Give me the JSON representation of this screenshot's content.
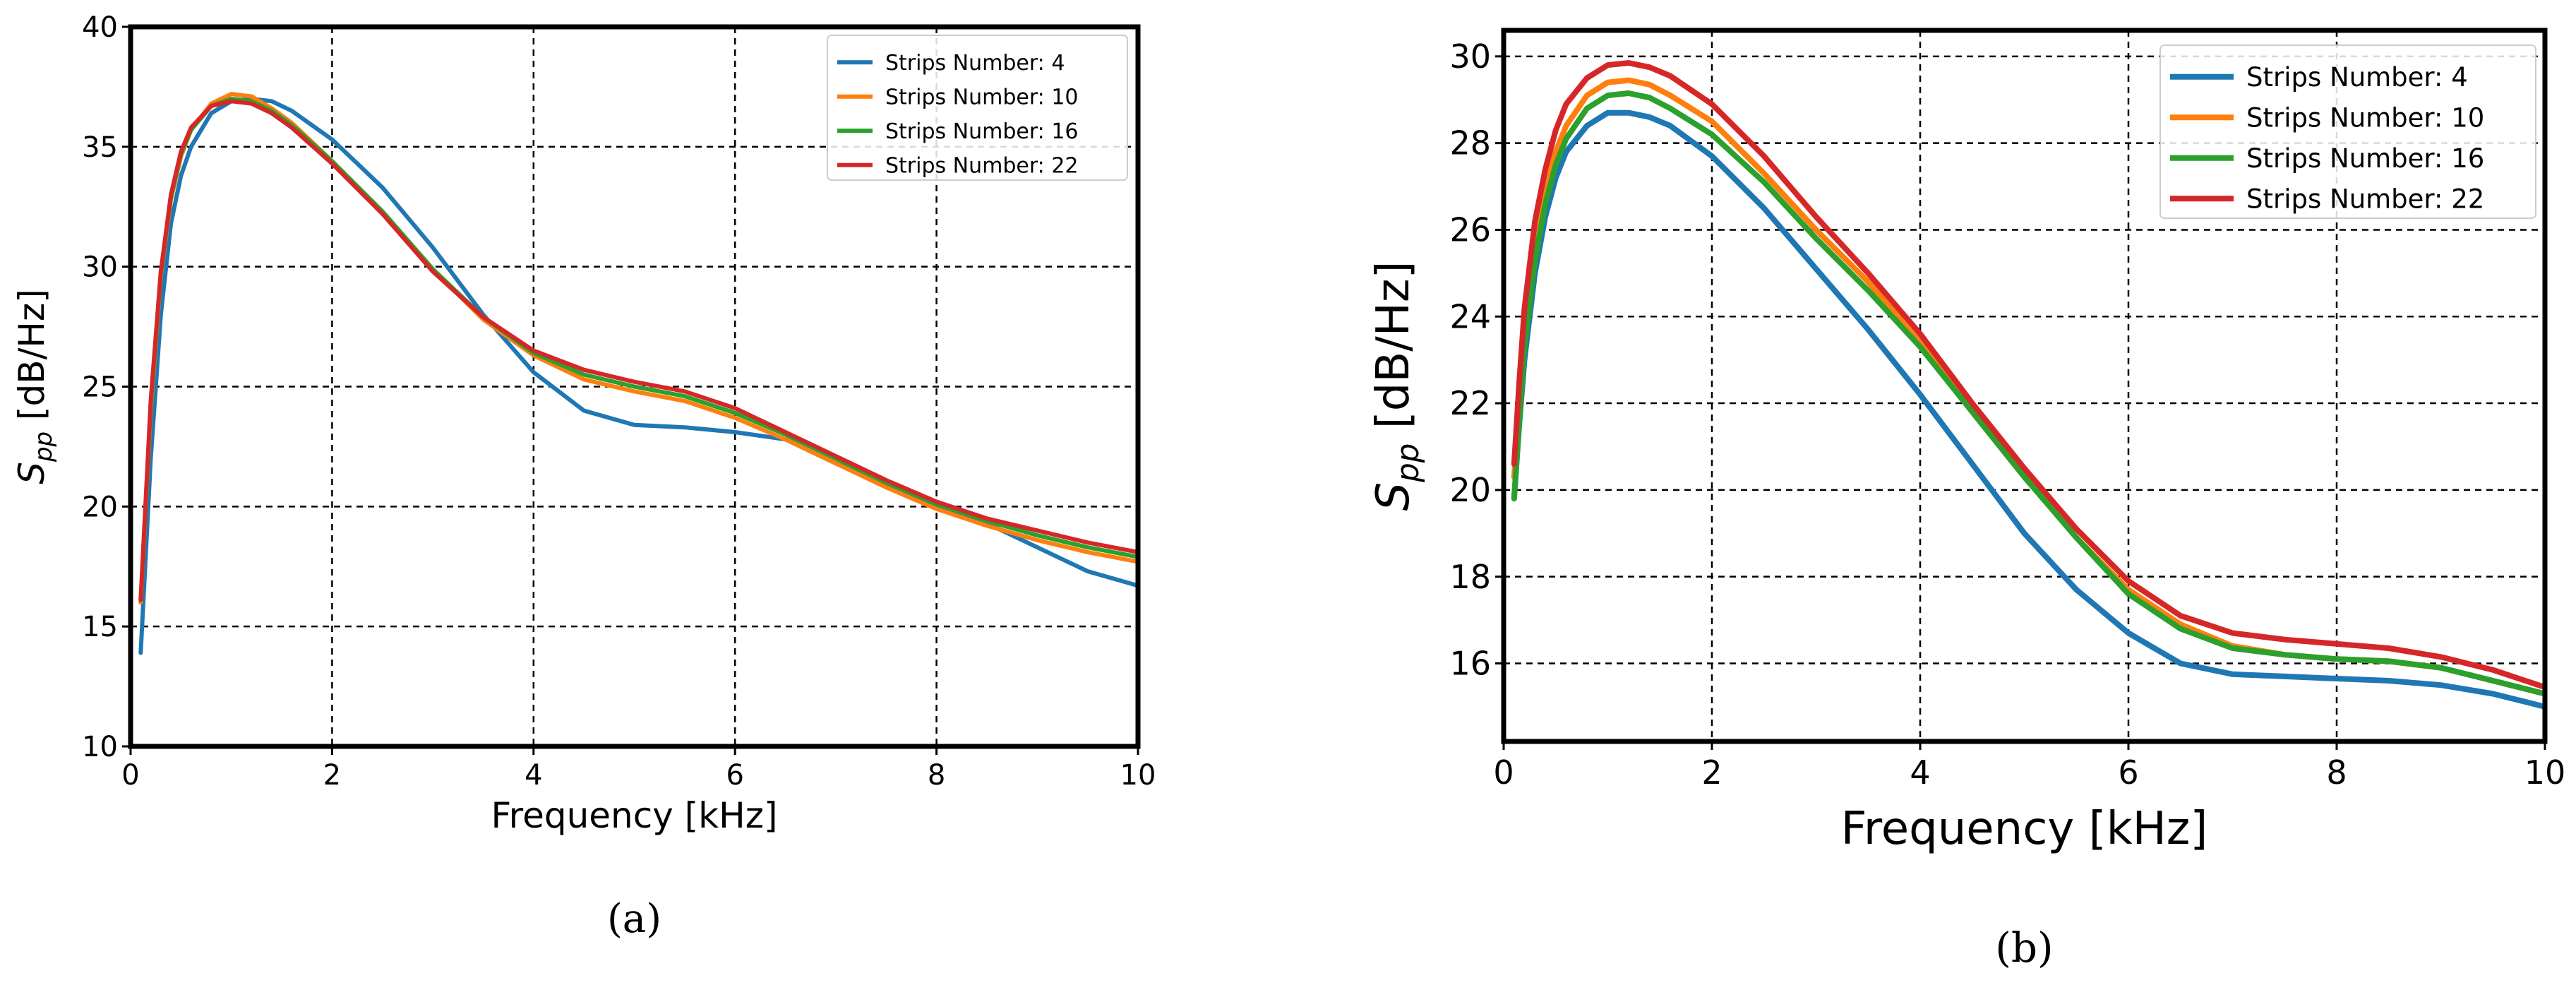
{
  "chart_data": [
    {
      "type": "line",
      "panel": "a",
      "caption": "(a)",
      "xlabel": "Frequency [kHz]",
      "ylabel_symbol": "S",
      "ylabel_subscript": "pp",
      "ylabel_unit": " [dB/Hz]",
      "xlim": [
        0,
        10
      ],
      "ylim": [
        10,
        40
      ],
      "xticks": [
        0,
        2,
        4,
        6,
        8,
        10
      ],
      "yticks": [
        10,
        15,
        20,
        25,
        30,
        35,
        40
      ],
      "grid": true,
      "legend_position": "top-right",
      "series": [
        {
          "name": "Strips Number: 4",
          "color": "#1f77b4",
          "x": [
            0.1,
            0.2,
            0.3,
            0.4,
            0.5,
            0.6,
            0.8,
            1.0,
            1.2,
            1.4,
            1.6,
            2.0,
            2.5,
            3.0,
            3.5,
            4.0,
            4.5,
            5.0,
            5.5,
            6.0,
            6.5,
            7.0,
            7.5,
            8.0,
            8.5,
            9.0,
            9.5,
            10.0
          ],
          "y": [
            13.9,
            22.0,
            28.0,
            31.8,
            33.8,
            35.0,
            36.4,
            36.9,
            37.0,
            36.9,
            36.5,
            35.3,
            33.3,
            30.8,
            28.0,
            25.6,
            24.0,
            23.4,
            23.3,
            23.1,
            22.8,
            21.8,
            20.9,
            20.0,
            19.3,
            18.3,
            17.3,
            16.7
          ]
        },
        {
          "name": "Strips Number: 10",
          "color": "#ff7f0e",
          "x": [
            0.1,
            0.2,
            0.3,
            0.4,
            0.5,
            0.6,
            0.8,
            1.0,
            1.2,
            1.4,
            1.6,
            2.0,
            2.5,
            3.0,
            3.5,
            4.0,
            4.5,
            5.0,
            5.5,
            6.0,
            6.5,
            7.0,
            7.5,
            8.0,
            8.5,
            9.0,
            9.5,
            10.0
          ],
          "y": [
            16.0,
            24.0,
            29.6,
            32.8,
            34.6,
            35.7,
            36.8,
            37.2,
            37.1,
            36.6,
            36.0,
            34.4,
            32.3,
            29.9,
            27.8,
            26.3,
            25.3,
            24.8,
            24.4,
            23.7,
            22.8,
            21.8,
            20.8,
            19.9,
            19.2,
            18.6,
            18.1,
            17.7
          ]
        },
        {
          "name": "Strips Number: 16",
          "color": "#2ca02c",
          "x": [
            0.1,
            0.2,
            0.3,
            0.4,
            0.5,
            0.6,
            0.8,
            1.0,
            1.2,
            1.4,
            1.6,
            2.0,
            2.5,
            3.0,
            3.5,
            4.0,
            4.5,
            5.0,
            5.5,
            6.0,
            6.5,
            7.0,
            7.5,
            8.0,
            8.5,
            9.0,
            9.5,
            10.0
          ],
          "y": [
            16.1,
            24.2,
            29.7,
            32.9,
            34.7,
            35.7,
            36.7,
            37.0,
            36.9,
            36.5,
            35.9,
            34.4,
            32.3,
            29.9,
            27.9,
            26.4,
            25.5,
            25.0,
            24.6,
            23.9,
            23.0,
            22.0,
            21.0,
            20.1,
            19.4,
            18.8,
            18.3,
            17.9
          ]
        },
        {
          "name": "Strips Number: 22",
          "color": "#d62728",
          "x": [
            0.1,
            0.2,
            0.3,
            0.4,
            0.5,
            0.6,
            0.8,
            1.0,
            1.2,
            1.4,
            1.6,
            2.0,
            2.5,
            3.0,
            3.5,
            4.0,
            4.5,
            5.0,
            5.5,
            6.0,
            6.5,
            7.0,
            7.5,
            8.0,
            8.5,
            9.0,
            9.5,
            10.0
          ],
          "y": [
            16.1,
            24.4,
            29.8,
            33.0,
            34.8,
            35.8,
            36.7,
            36.9,
            36.8,
            36.4,
            35.8,
            34.3,
            32.2,
            29.8,
            27.9,
            26.5,
            25.7,
            25.2,
            24.8,
            24.1,
            23.1,
            22.1,
            21.1,
            20.2,
            19.5,
            19.0,
            18.5,
            18.1
          ]
        }
      ]
    },
    {
      "type": "line",
      "panel": "b",
      "caption": "(b)",
      "xlabel": "Frequency [kHz]",
      "ylabel_symbol": "S",
      "ylabel_subscript": "pp",
      "ylabel_unit": " [dB/Hz]",
      "xlim": [
        0,
        10
      ],
      "ylim": [
        14.2,
        30.6
      ],
      "xticks": [
        0,
        2,
        4,
        6,
        8,
        10
      ],
      "yticks": [
        16,
        18,
        20,
        22,
        24,
        26,
        28,
        30
      ],
      "grid": true,
      "legend_position": "top-right",
      "series": [
        {
          "name": "Strips Number: 4",
          "color": "#1f77b4",
          "x": [
            0.1,
            0.15,
            0.2,
            0.3,
            0.4,
            0.5,
            0.6,
            0.8,
            1.0,
            1.2,
            1.4,
            1.6,
            2.0,
            2.5,
            3.0,
            3.5,
            4.0,
            4.5,
            5.0,
            5.5,
            6.0,
            6.5,
            7.0,
            7.5,
            8.0,
            8.5,
            9.0,
            9.5,
            10.0
          ],
          "y": [
            19.8,
            21.5,
            23.0,
            25.0,
            26.3,
            27.2,
            27.8,
            28.4,
            28.7,
            28.7,
            28.6,
            28.4,
            27.7,
            26.5,
            25.1,
            23.7,
            22.2,
            20.6,
            19.0,
            17.7,
            16.7,
            16.0,
            15.75,
            15.7,
            15.65,
            15.6,
            15.5,
            15.3,
            15.0
          ]
        },
        {
          "name": "Strips Number: 10",
          "color": "#ff7f0e",
          "x": [
            0.1,
            0.15,
            0.2,
            0.3,
            0.4,
            0.5,
            0.6,
            0.8,
            1.0,
            1.2,
            1.4,
            1.6,
            2.0,
            2.5,
            3.0,
            3.5,
            4.0,
            4.5,
            5.0,
            5.5,
            6.0,
            6.5,
            7.0,
            7.5,
            8.0,
            8.5,
            9.0,
            9.5,
            10.0
          ],
          "y": [
            20.3,
            22.0,
            23.6,
            25.6,
            26.9,
            27.8,
            28.4,
            29.1,
            29.4,
            29.45,
            29.35,
            29.1,
            28.5,
            27.3,
            26.0,
            24.8,
            23.4,
            21.8,
            20.3,
            18.9,
            17.7,
            16.9,
            16.4,
            16.2,
            16.1,
            16.05,
            15.9,
            15.6,
            15.3
          ]
        },
        {
          "name": "Strips Number: 16",
          "color": "#2ca02c",
          "x": [
            0.1,
            0.15,
            0.2,
            0.3,
            0.4,
            0.5,
            0.6,
            0.8,
            1.0,
            1.2,
            1.4,
            1.6,
            2.0,
            2.5,
            3.0,
            3.5,
            4.0,
            4.5,
            5.0,
            5.5,
            6.0,
            6.5,
            7.0,
            7.5,
            8.0,
            8.5,
            9.0,
            9.5,
            10.0
          ],
          "y": [
            19.8,
            21.6,
            23.3,
            25.3,
            26.6,
            27.5,
            28.1,
            28.8,
            29.1,
            29.15,
            29.05,
            28.8,
            28.2,
            27.1,
            25.8,
            24.6,
            23.3,
            21.8,
            20.3,
            18.9,
            17.6,
            16.8,
            16.35,
            16.2,
            16.1,
            16.05,
            15.9,
            15.6,
            15.3
          ]
        },
        {
          "name": "Strips Number: 22",
          "color": "#d62728",
          "x": [
            0.1,
            0.15,
            0.2,
            0.3,
            0.4,
            0.5,
            0.6,
            0.8,
            1.0,
            1.2,
            1.4,
            1.6,
            2.0,
            2.5,
            3.0,
            3.5,
            4.0,
            4.5,
            5.0,
            5.5,
            6.0,
            6.5,
            7.0,
            7.5,
            8.0,
            8.5,
            9.0,
            9.5,
            10.0
          ],
          "y": [
            20.6,
            22.5,
            24.2,
            26.2,
            27.4,
            28.3,
            28.9,
            29.5,
            29.8,
            29.85,
            29.75,
            29.55,
            28.9,
            27.7,
            26.3,
            25.0,
            23.6,
            22.0,
            20.5,
            19.1,
            17.9,
            17.1,
            16.7,
            16.55,
            16.45,
            16.35,
            16.15,
            15.85,
            15.45
          ]
        }
      ]
    }
  ]
}
